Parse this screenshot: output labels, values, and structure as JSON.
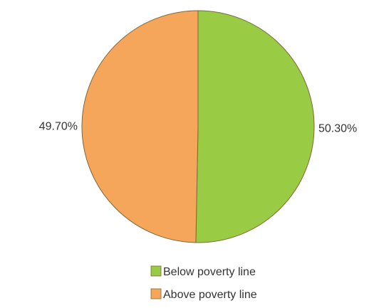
{
  "chart_data": {
    "type": "pie",
    "title": "",
    "slices": [
      {
        "label": "Below poverty line",
        "value": 50.3,
        "display": "50.30%",
        "color": "#99cc44"
      },
      {
        "label": "Above poverty line",
        "value": 49.7,
        "display": "49.70%",
        "color": "#f5a65a"
      }
    ],
    "start": "12 o'clock",
    "direction": "clockwise",
    "legend_position": "bottom-center"
  }
}
